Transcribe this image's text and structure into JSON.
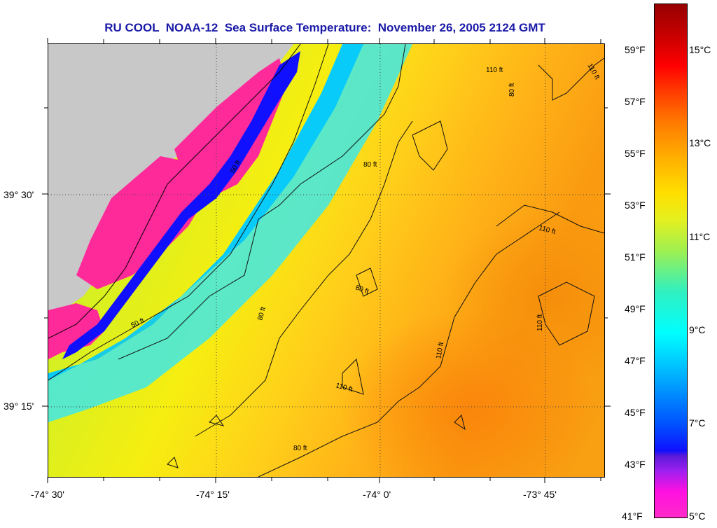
{
  "title": "RU COOL  NOAA-12  Sea Surface Temperature:  November 26, 2005 2124 GMT",
  "map": {
    "lat_labels": [
      "39° 30'",
      "39° 15'"
    ],
    "lon_labels": [
      "-74° 30'",
      "-74° 15'",
      "-74° 0'",
      "-73° 45'"
    ],
    "contour_labels": [
      "50 ft",
      "50 ft",
      "80 ft",
      "80 ft",
      "80 ft",
      "80 ft",
      "80 ft",
      "110 ft",
      "110 ft",
      "110 ft",
      "110 ft",
      "110 ft",
      "110 ft"
    ]
  },
  "colorbar": {
    "fahrenheit": [
      "59°F",
      "57°F",
      "55°F",
      "53°F",
      "51°F",
      "49°F",
      "47°F",
      "45°F",
      "43°F",
      "41°F"
    ],
    "celsius": [
      "15°C",
      "13°C",
      "11°C",
      "9°C",
      "7°C",
      "5°C"
    ]
  },
  "colors": {
    "title": "#1a1aa8",
    "land": "#c8c8c8",
    "cloud_mask": "#ff2a9a",
    "coastal_water": "#1010ff"
  }
}
